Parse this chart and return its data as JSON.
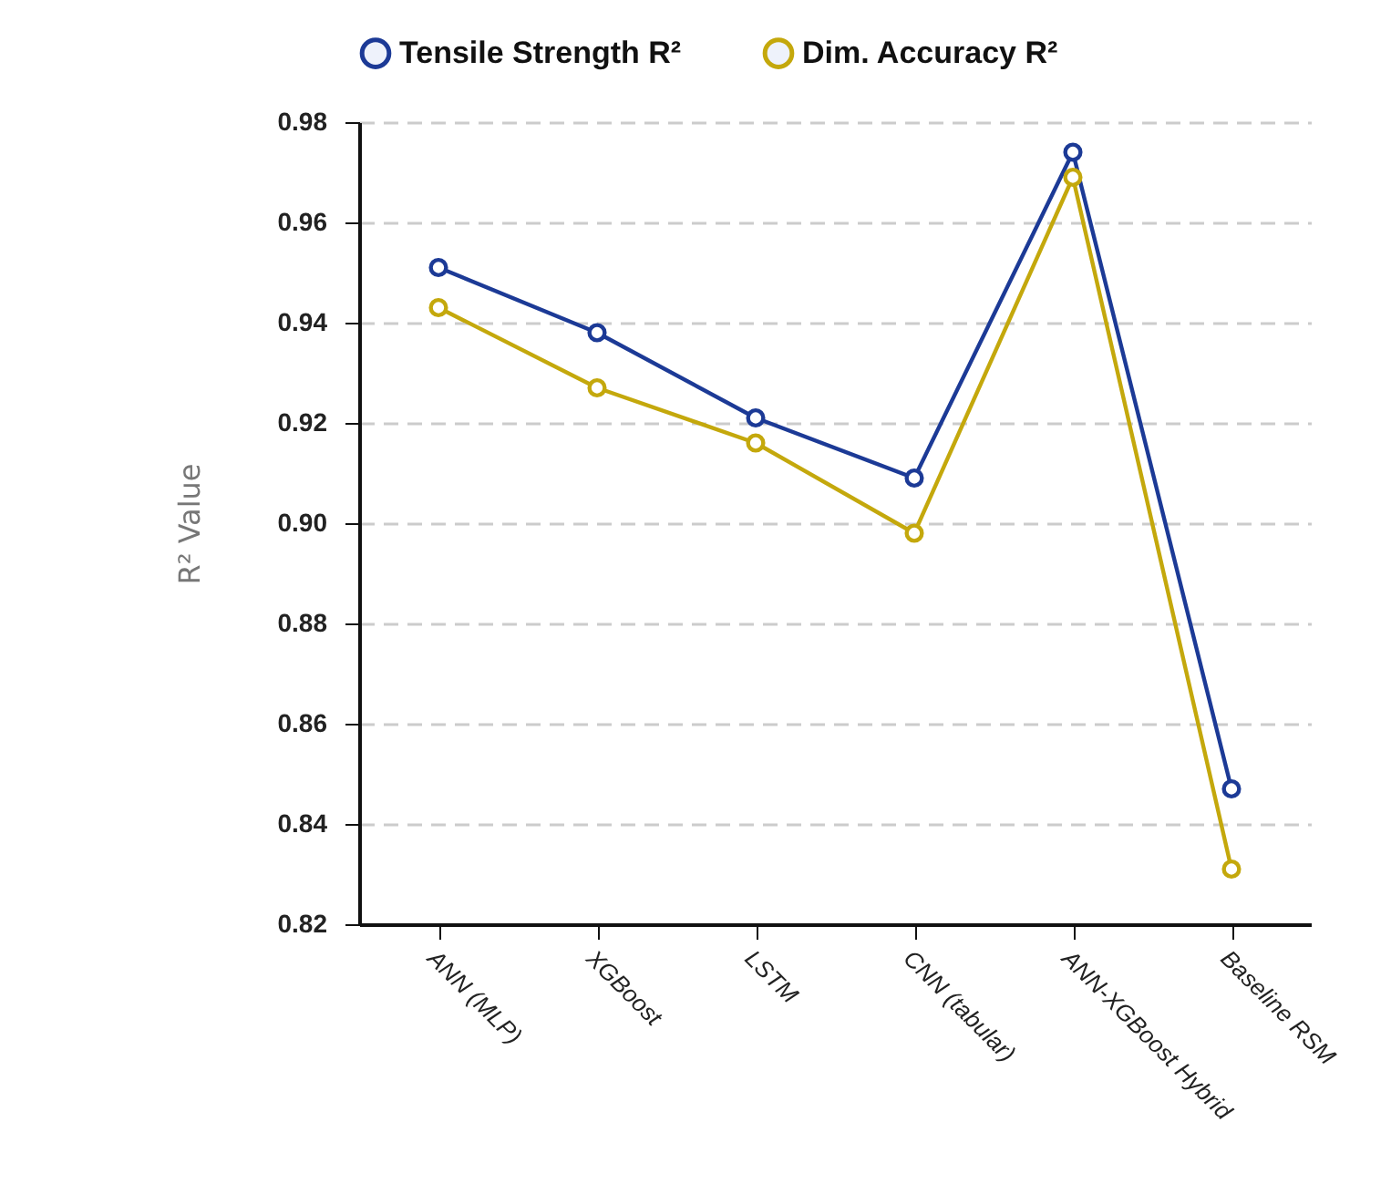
{
  "chart_data": {
    "type": "line",
    "ylabel": "R² Value",
    "categories": [
      "ANN (MLP)",
      "XGBoost",
      "LSTM",
      "CNN (tabular)",
      "ANN-XGBoost Hybrid",
      "Baseline RSM"
    ],
    "series": [
      {
        "name": "Tensile Strength R²",
        "color": "#1c3a96",
        "values": [
          0.951,
          0.938,
          0.921,
          0.909,
          0.974,
          0.847
        ]
      },
      {
        "name": "Dim. Accuracy R²",
        "color": "#c4a80c",
        "values": [
          0.943,
          0.927,
          0.916,
          0.898,
          0.969,
          0.831
        ]
      }
    ],
    "ylim": [
      0.82,
      0.98
    ],
    "yticks": [
      0.82,
      0.84,
      0.86,
      0.88,
      {
        "value": 0.9,
        "label": "0.90"
      },
      0.92,
      0.94,
      0.96,
      0.98
    ],
    "grid": "y",
    "legend": "top",
    "marker": "circle",
    "line_style": "solid"
  }
}
